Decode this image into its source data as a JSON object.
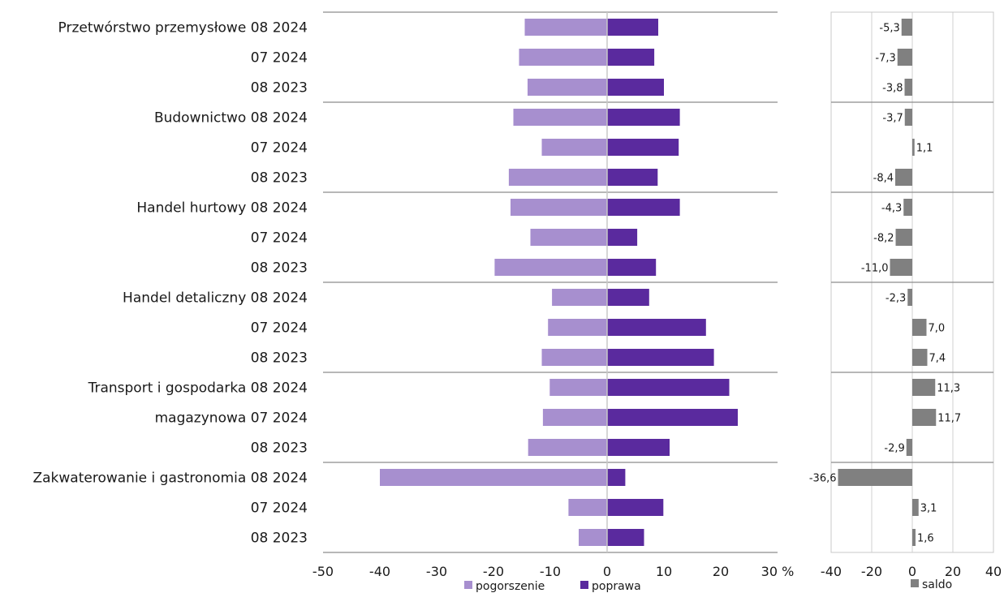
{
  "chart_data": [
    {
      "type": "bar",
      "orientation": "horizontal",
      "categories": [
        "Przetwórstwo przemysłowe 08 2024",
        "07 2024",
        "08 2023",
        "Budownictwo 08 2024",
        "07 2024",
        "08 2023",
        "Handel hurtowy 08 2024",
        "07 2024",
        "08 2023",
        "Handel detaliczny 08 2024",
        "07 2024",
        "08 2023",
        "Transport i gospodarka 08 2024",
        "magazynowa 07 2024",
        "08 2023",
        "Zakwaterowanie i gastronomia 08 2024",
        "07 2024",
        "08 2023"
      ],
      "series": [
        {
          "name": "pogorszenie",
          "color": "#a78fcf",
          "values": [
            -14.5,
            -15.5,
            -14,
            -16.5,
            -11.5,
            -17.3,
            -17,
            -13.5,
            -19.8,
            -9.7,
            -10.4,
            -11.5,
            -10.1,
            -11.3,
            -13.9,
            -40,
            -6.8,
            -5
          ]
        },
        {
          "name": "poprawa",
          "color": "#5a2a9e",
          "values": [
            9,
            8.3,
            10,
            12.8,
            12.6,
            8.9,
            12.8,
            5.3,
            8.6,
            7.4,
            17.4,
            18.8,
            21.5,
            23,
            11,
            3.2,
            9.9,
            6.5
          ]
        }
      ],
      "xlim": [
        -50,
        30
      ],
      "xticks": [
        "-50",
        "-40",
        "-30",
        "-20",
        "-10",
        "0",
        "10",
        "20",
        "30 %"
      ],
      "legend": "bottom",
      "grid": false
    },
    {
      "type": "bar",
      "orientation": "horizontal",
      "series": [
        {
          "name": "saldo",
          "color": "#808080",
          "values": [
            -5.3,
            -7.3,
            -3.8,
            -3.7,
            1.1,
            -8.4,
            -4.3,
            -8.2,
            -11.0,
            -2.3,
            7.0,
            7.4,
            11.3,
            11.7,
            -2.9,
            -36.6,
            3.1,
            1.6
          ],
          "labels": [
            "-5,3",
            "-7,3",
            "-3,8",
            "-3,7",
            "1,1",
            "-8,4",
            "-4,3",
            "-8,2",
            "-11,0",
            "-2,3",
            "7,0",
            "7,4",
            "11,3",
            "11,7",
            "-2,9",
            "-36,6",
            "3,1",
            "1,6"
          ]
        }
      ],
      "xlim": [
        -40,
        40
      ],
      "xticks": [
        "-40",
        "-20",
        "0",
        "20",
        "40"
      ],
      "legend": "bottom",
      "grid": true
    }
  ]
}
